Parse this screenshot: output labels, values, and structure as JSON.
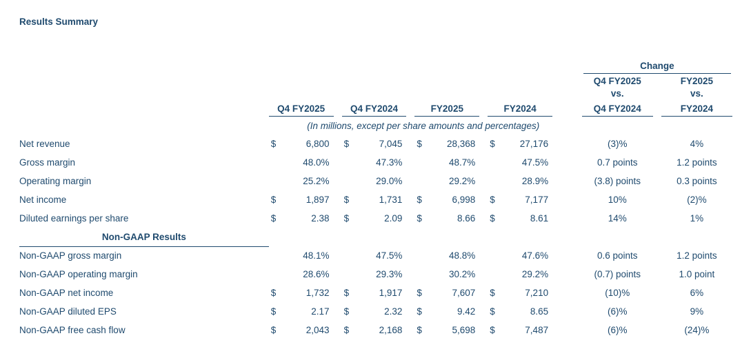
{
  "colors": {
    "ink": "#1f4a6e"
  },
  "title": "Results Summary",
  "header": {
    "change_label": "Change",
    "columns": [
      "Q4 FY2025",
      "Q4 FY2024",
      "FY2025",
      "FY2024"
    ],
    "change_columns": [
      [
        "Q4 FY2025",
        "vs.",
        "Q4 FY2024"
      ],
      [
        "FY2025",
        "vs.",
        "FY2024"
      ]
    ],
    "note": "(In millions, except per share amounts and percentages)"
  },
  "rows": [
    {
      "type": "data",
      "label": "Net revenue",
      "currency": "$",
      "values": [
        "6,800",
        "7,045",
        "28,368",
        "27,176"
      ],
      "changes": [
        "(3)%",
        "4%"
      ]
    },
    {
      "type": "data",
      "label": "Gross margin",
      "currency": "",
      "values": [
        "48.0%",
        "47.3%",
        "48.7%",
        "47.5%"
      ],
      "changes": [
        "0.7 points",
        "1.2 points"
      ]
    },
    {
      "type": "data",
      "label": "Operating margin",
      "currency": "",
      "values": [
        "25.2%",
        "29.0%",
        "29.2%",
        "28.9%"
      ],
      "changes": [
        "(3.8) points",
        "0.3 points"
      ]
    },
    {
      "type": "data",
      "label": "Net income",
      "currency": "$",
      "values": [
        "1,897",
        "1,731",
        "6,998",
        "7,177"
      ],
      "changes": [
        "10%",
        "(2)%"
      ]
    },
    {
      "type": "data",
      "label": "Diluted earnings per share",
      "currency": "$",
      "values": [
        "2.38",
        "2.09",
        "8.66",
        "8.61"
      ],
      "changes": [
        "14%",
        "1%"
      ]
    },
    {
      "type": "section",
      "label": "Non-GAAP Results"
    },
    {
      "type": "data",
      "label": "Non-GAAP gross margin",
      "currency": "",
      "values": [
        "48.1%",
        "47.5%",
        "48.8%",
        "47.6%"
      ],
      "changes": [
        "0.6 points",
        "1.2 points"
      ]
    },
    {
      "type": "data",
      "label": "Non-GAAP operating margin",
      "currency": "",
      "values": [
        "28.6%",
        "29.3%",
        "30.2%",
        "29.2%"
      ],
      "changes": [
        "(0.7) points",
        "1.0 point"
      ]
    },
    {
      "type": "data",
      "label": "Non-GAAP net income",
      "currency": "$",
      "values": [
        "1,732",
        "1,917",
        "7,607",
        "7,210"
      ],
      "changes": [
        "(10)%",
        "6%"
      ]
    },
    {
      "type": "data",
      "label": "Non-GAAP diluted EPS",
      "currency": "$",
      "values": [
        "2.17",
        "2.32",
        "9.42",
        "8.65"
      ],
      "changes": [
        "(6)%",
        "9%"
      ]
    },
    {
      "type": "data",
      "label": "Non-GAAP free cash flow",
      "currency": "$",
      "values": [
        "2,043",
        "2,168",
        "5,698",
        "7,487"
      ],
      "changes": [
        "(6)%",
        "(24)%"
      ]
    }
  ]
}
